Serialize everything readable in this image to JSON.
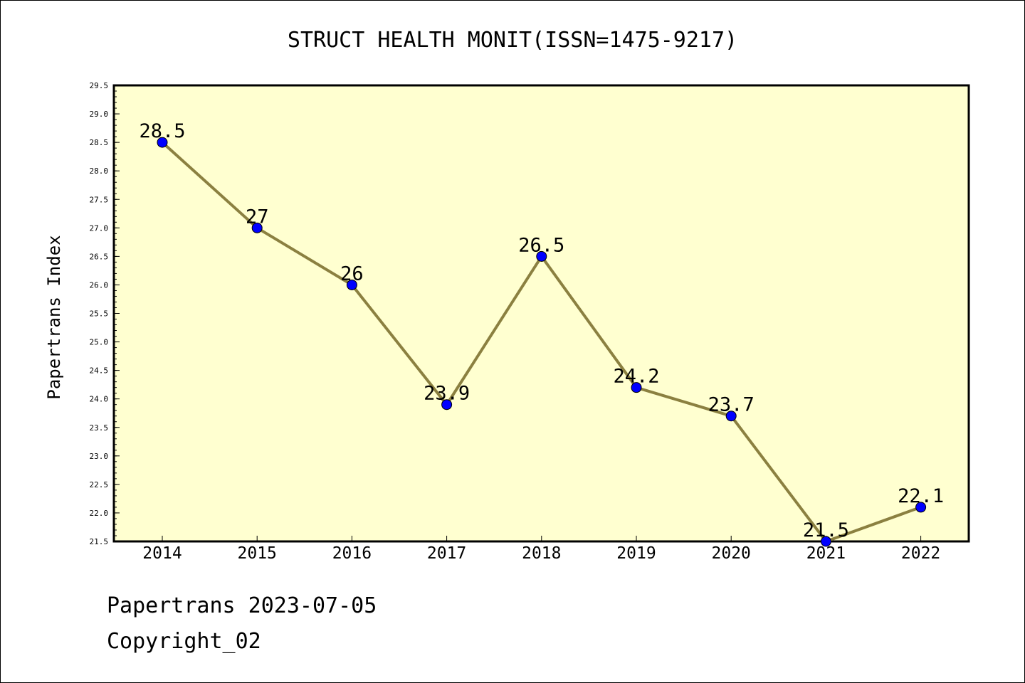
{
  "chart_data": {
    "type": "line",
    "title": "STRUCT HEALTH MONIT(ISSN=1475-9217)",
    "xlabel": "",
    "ylabel": "Papertrans Index",
    "categories": [
      "2014",
      "2015",
      "2016",
      "2017",
      "2018",
      "2019",
      "2020",
      "2021",
      "2022"
    ],
    "series": [
      {
        "values": [
          28.5,
          27,
          26,
          23.9,
          26.5,
          24.2,
          23.7,
          21.5,
          22.1
        ],
        "labels": [
          "28.5",
          "27",
          "26",
          "23.9",
          "26.5",
          "24.2",
          "23.7",
          "21.5",
          "22.1"
        ]
      }
    ],
    "ylim": [
      21.5,
      29.5
    ],
    "yticks": [
      "21.5",
      "22.0",
      "22.5",
      "23.0",
      "23.5",
      "24.0",
      "24.5",
      "25.0",
      "25.5",
      "26.0",
      "26.5",
      "27.0",
      "27.5",
      "28.0",
      "28.5",
      "29.0",
      "29.5"
    ],
    "grid": false,
    "legend": "none",
    "colors": {
      "plot_background": "#ffffd0",
      "line": "#8b8040",
      "marker": "#0000ff"
    }
  },
  "footer": {
    "date_line": "Papertrans 2023-07-05",
    "copyright": "Copyright_02"
  }
}
